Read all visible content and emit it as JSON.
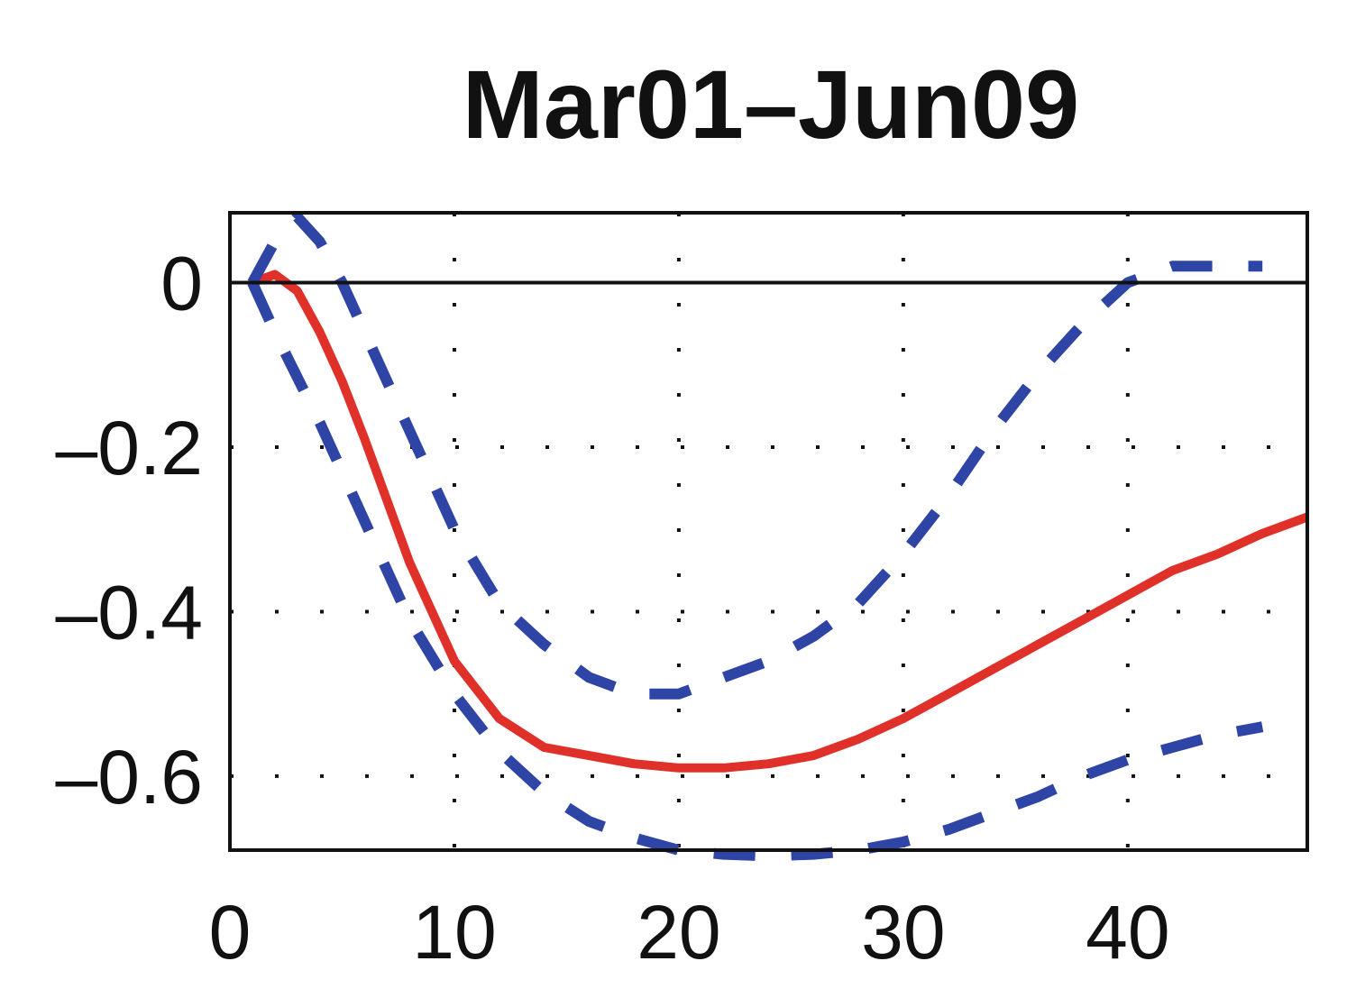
{
  "chart_data": {
    "type": "line",
    "title": "Mar01–Jun09",
    "xlabel": "",
    "ylabel": "",
    "xlim": [
      0,
      48
    ],
    "ylim": [
      -0.69,
      0.085
    ],
    "xticks": [
      0,
      10,
      20,
      30,
      40
    ],
    "xtick_labels": [
      "0",
      "10",
      "20",
      "30",
      "40"
    ],
    "yticks": [
      0,
      -0.2,
      -0.4,
      -0.6
    ],
    "ytick_labels": [
      "0",
      "–0.2",
      "–0.4",
      "–0.6"
    ],
    "grid": true,
    "zero_line": true,
    "legend": "none",
    "series": [
      {
        "role": "estimate",
        "color": "#e0302a",
        "style": "solid",
        "x": [
          1,
          2,
          3,
          4,
          5,
          6,
          8,
          10,
          12,
          14,
          16,
          18,
          20,
          22,
          24,
          26,
          28,
          30,
          32,
          34,
          36,
          38,
          40,
          42,
          44,
          46,
          48
        ],
        "y": [
          0.0,
          0.01,
          -0.01,
          -0.06,
          -0.12,
          -0.19,
          -0.34,
          -0.46,
          -0.53,
          -0.565,
          -0.575,
          -0.585,
          -0.59,
          -0.59,
          -0.585,
          -0.575,
          -0.555,
          -0.53,
          -0.5,
          -0.47,
          -0.44,
          -0.41,
          -0.38,
          -0.35,
          -0.33,
          -0.305,
          -0.285
        ]
      },
      {
        "role": "upper band",
        "color": "#2e45a6",
        "style": "dashed",
        "x": [
          1,
          2,
          3,
          4,
          5,
          6,
          8,
          10,
          12,
          14,
          16,
          18,
          20,
          22,
          24,
          26,
          28,
          30,
          32,
          34,
          36,
          38,
          40,
          42,
          44,
          46
        ],
        "y": [
          0.0,
          0.05,
          0.08,
          0.05,
          0.0,
          -0.06,
          -0.18,
          -0.3,
          -0.39,
          -0.44,
          -0.48,
          -0.5,
          -0.5,
          -0.48,
          -0.46,
          -0.43,
          -0.39,
          -0.33,
          -0.26,
          -0.18,
          -0.11,
          -0.05,
          0.0,
          0.02,
          0.02,
          0.02
        ]
      },
      {
        "role": "lower band",
        "color": "#2e45a6",
        "style": "dashed",
        "x": [
          1,
          2,
          4,
          6,
          8,
          10,
          12,
          14,
          16,
          18,
          20,
          22,
          24,
          26,
          28,
          30,
          32,
          34,
          36,
          38,
          40,
          42,
          44,
          46
        ],
        "y": [
          0.0,
          -0.06,
          -0.17,
          -0.29,
          -0.41,
          -0.5,
          -0.57,
          -0.62,
          -0.655,
          -0.675,
          -0.69,
          -0.695,
          -0.697,
          -0.695,
          -0.69,
          -0.68,
          -0.665,
          -0.645,
          -0.625,
          -0.6,
          -0.58,
          -0.565,
          -0.55,
          -0.54
        ]
      }
    ]
  }
}
